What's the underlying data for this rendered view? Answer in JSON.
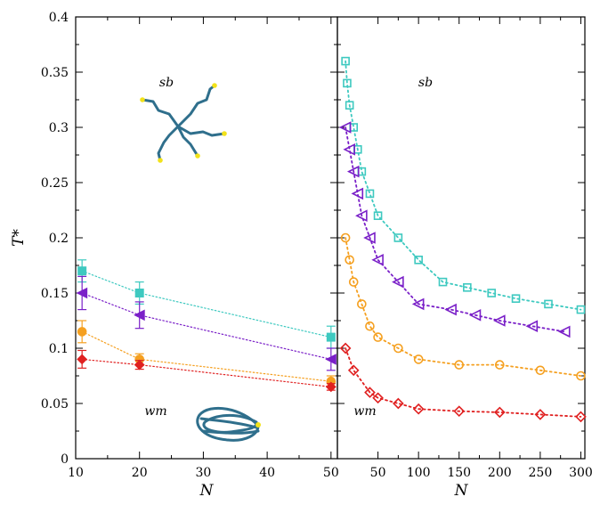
{
  "chart_data": [
    {
      "type": "scatter",
      "panel": "left",
      "xlabel": "N",
      "ylabel": "T*",
      "xlim": [
        10,
        51
      ],
      "ylim": [
        0,
        0.4
      ],
      "xticks": [
        10,
        20,
        30,
        40,
        50
      ],
      "yticks": [
        0,
        0.05,
        0.1,
        0.15,
        0.2,
        0.25,
        0.3,
        0.35,
        0.4
      ],
      "ytick_labels": [
        "0",
        "0.05",
        "0.1",
        "0.15",
        "0.2",
        "0.25",
        "0.3",
        "0.35",
        "0.4"
      ],
      "annotations": [
        "sb",
        "wm"
      ],
      "grid": false,
      "series": [
        {
          "color": "#3ec9c0",
          "marker": "square-filled",
          "x": [
            11,
            20,
            50
          ],
          "y": [
            0.17,
            0.15,
            0.11
          ],
          "yerr": [
            0.01,
            0.01,
            0.01
          ]
        },
        {
          "color": "#7a20c8",
          "marker": "triangle-filled",
          "x": [
            11,
            20,
            50
          ],
          "y": [
            0.15,
            0.13,
            0.09
          ],
          "yerr": [
            0.015,
            0.012,
            0.01
          ]
        },
        {
          "color": "#f5a020",
          "marker": "circle-filled",
          "x": [
            11,
            20,
            50
          ],
          "y": [
            0.115,
            0.09,
            0.07
          ],
          "yerr": [
            0.01,
            0.005,
            0.005
          ]
        },
        {
          "color": "#e02020",
          "marker": "diamond-filled",
          "x": [
            11,
            20,
            50
          ],
          "y": [
            0.09,
            0.085,
            0.065
          ],
          "yerr": [
            0.008,
            0.004,
            0.003
          ]
        }
      ]
    },
    {
      "type": "line",
      "panel": "right",
      "xlabel": "N",
      "xlim": [
        0,
        305
      ],
      "ylim": [
        0,
        0.4
      ],
      "xticks": [
        50,
        100,
        150,
        200,
        250,
        300
      ],
      "annotations": [
        "sb",
        "wm"
      ],
      "grid": false,
      "series": [
        {
          "color": "#3ec9c0",
          "marker": "square-open",
          "x": [
            10,
            12,
            15,
            20,
            25,
            30,
            40,
            50,
            75,
            100,
            130,
            160,
            190,
            220,
            260,
            300
          ],
          "y": [
            0.36,
            0.34,
            0.32,
            0.3,
            0.28,
            0.26,
            0.24,
            0.22,
            0.2,
            0.18,
            0.16,
            0.155,
            0.15,
            0.145,
            0.14,
            0.135
          ]
        },
        {
          "color": "#7a20c8",
          "marker": "triangle-open",
          "x": [
            10,
            15,
            20,
            25,
            30,
            40,
            50,
            75,
            100,
            140,
            170,
            200,
            240,
            280
          ],
          "y": [
            0.3,
            0.28,
            0.26,
            0.24,
            0.22,
            0.2,
            0.18,
            0.16,
            0.14,
            0.135,
            0.13,
            0.125,
            0.12,
            0.115
          ]
        },
        {
          "color": "#f5a020",
          "marker": "circle-open",
          "x": [
            10,
            15,
            20,
            30,
            40,
            50,
            75,
            100,
            150,
            200,
            250,
            300
          ],
          "y": [
            0.2,
            0.18,
            0.16,
            0.14,
            0.12,
            0.11,
            0.1,
            0.09,
            0.085,
            0.085,
            0.08,
            0.075
          ]
        },
        {
          "color": "#e02020",
          "marker": "diamond-open",
          "x": [
            10,
            20,
            40,
            50,
            75,
            100,
            150,
            200,
            250,
            300
          ],
          "y": [
            0.1,
            0.08,
            0.06,
            0.055,
            0.05,
            0.045,
            0.043,
            0.042,
            0.04,
            0.038
          ]
        }
      ]
    }
  ]
}
